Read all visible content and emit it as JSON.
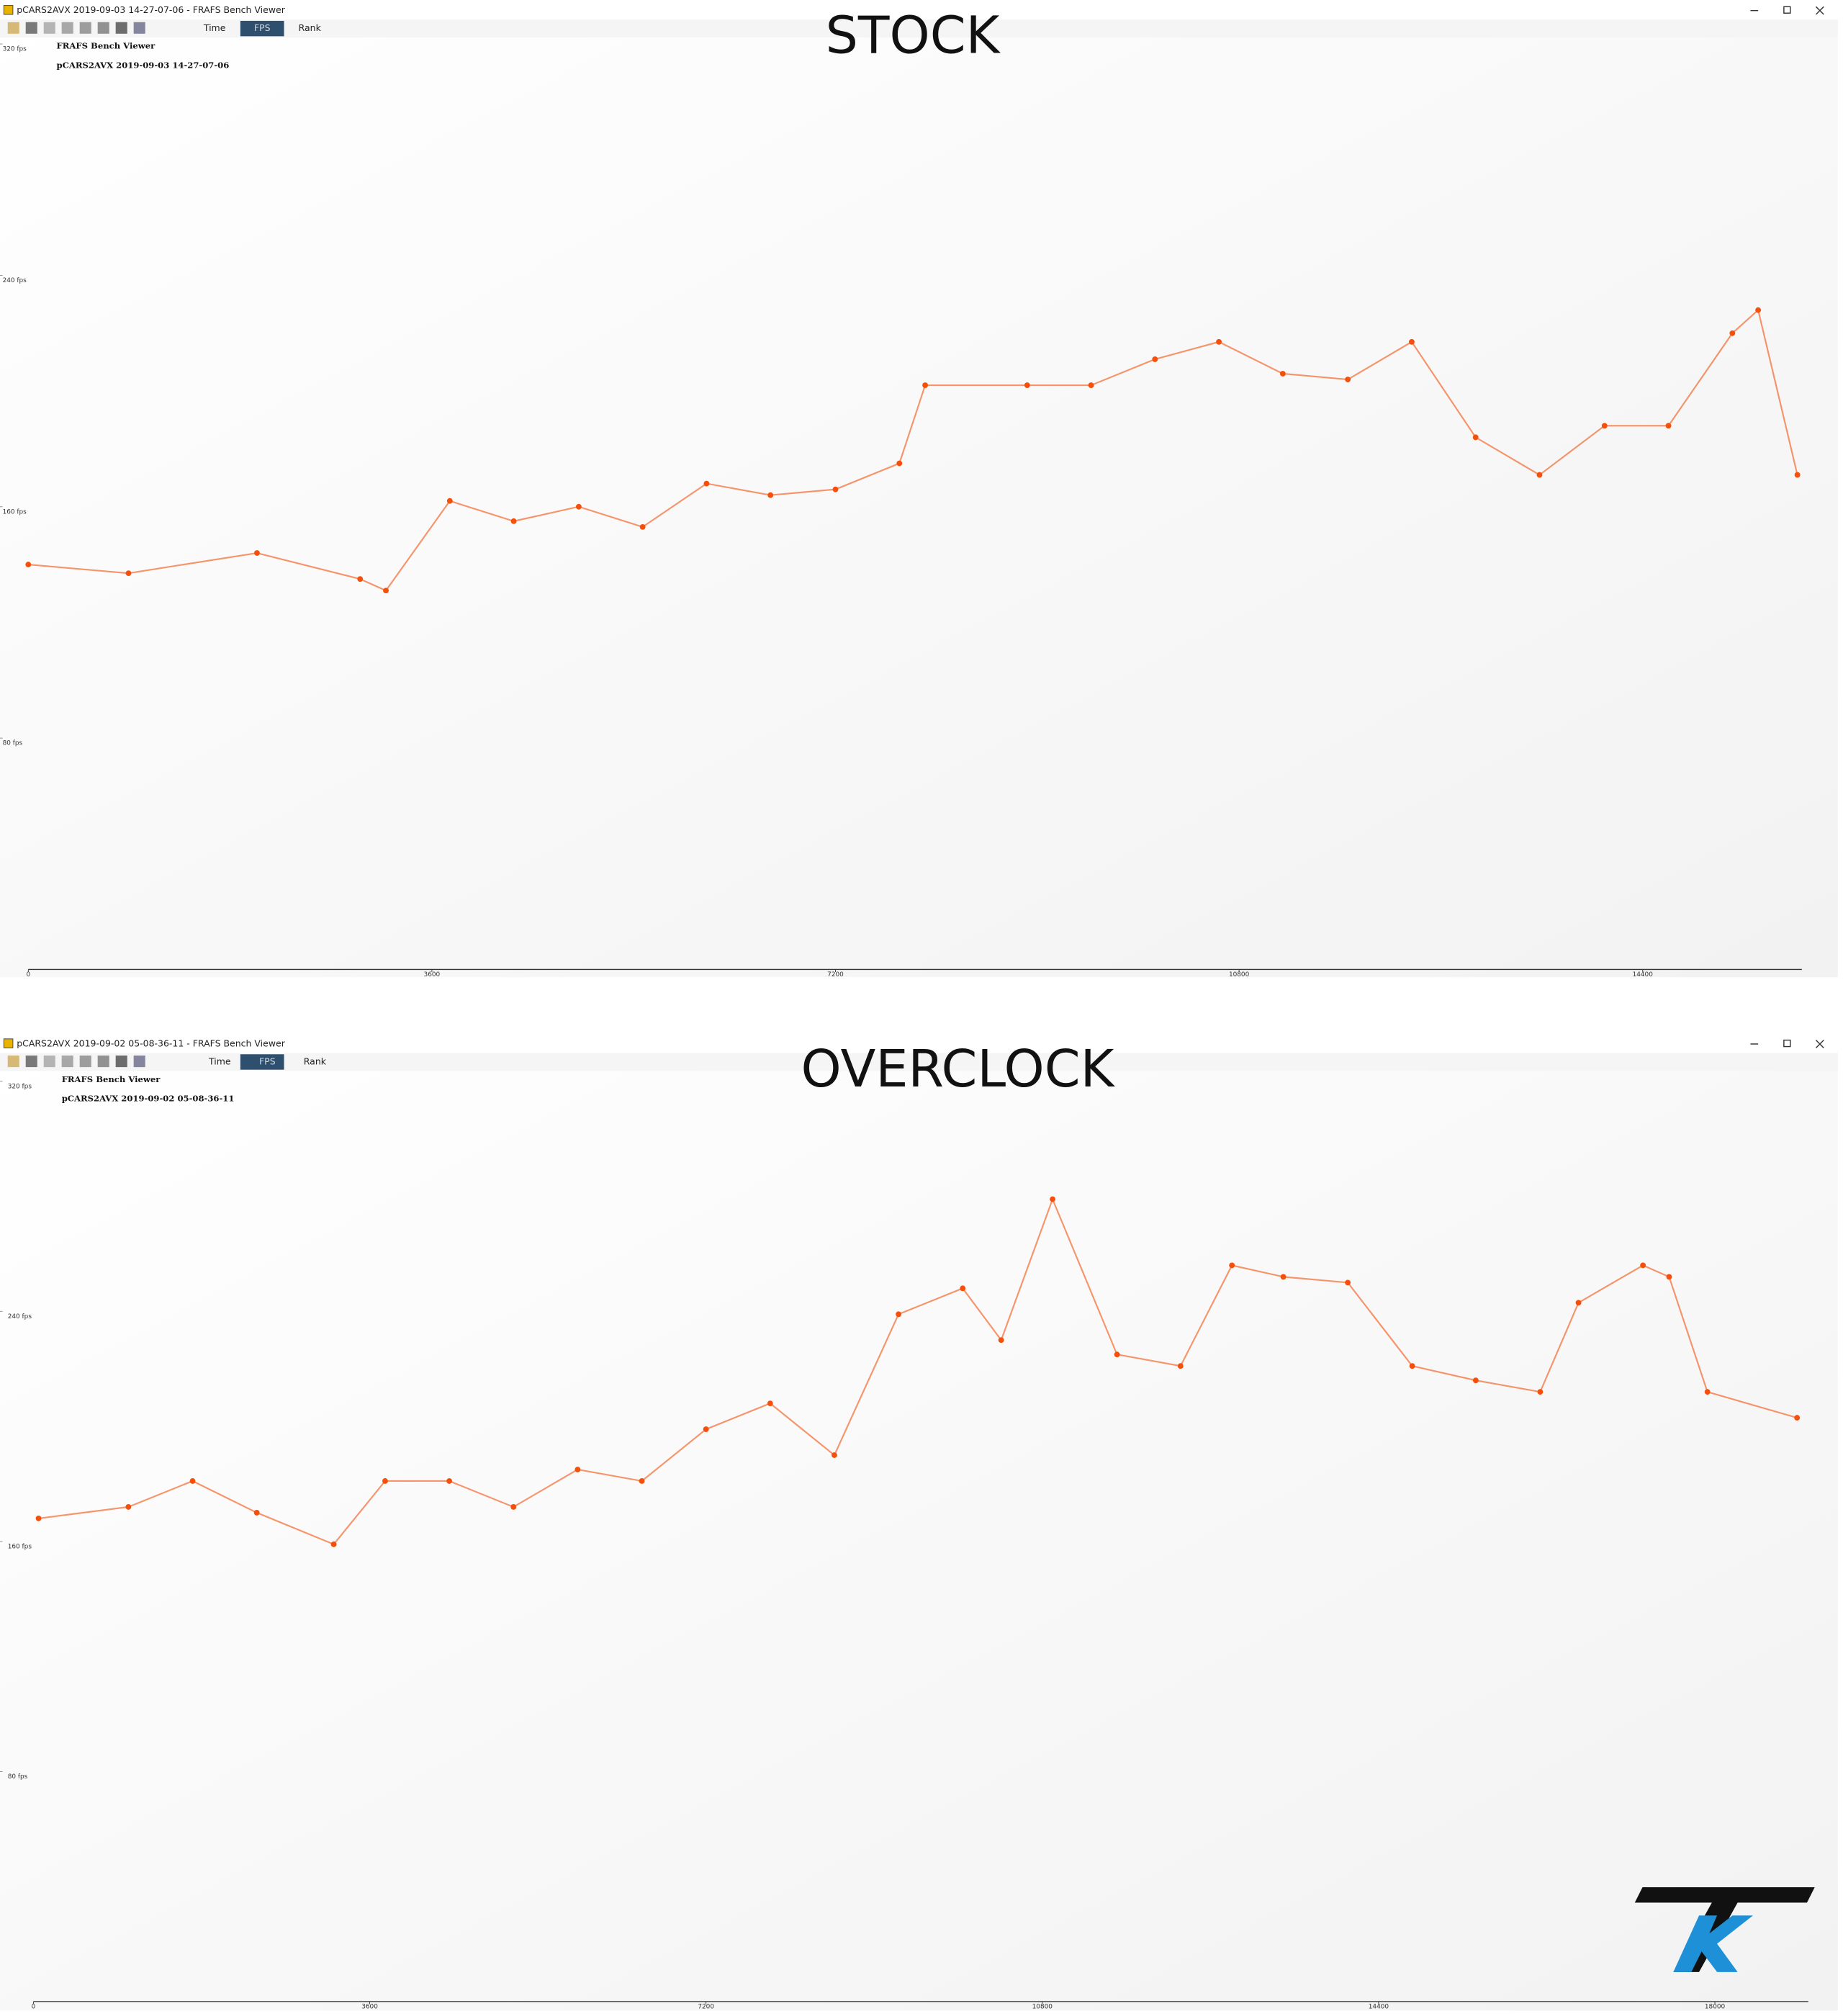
{
  "logo": "TKR",
  "chart_data": [
    {
      "type": "line",
      "window_title": "pCARS2AVX 2019-09-03 14-27-07-06 - FRAFS Bench Viewer",
      "tabs": [
        "Time",
        "FPS",
        "Rank"
      ],
      "title": "STOCK",
      "app_name": "FRAFS Bench Viewer",
      "subtitle": "pCARS2AVX 2019-09-03 14-27-07-06",
      "x": [
        0,
        894,
        2040,
        2960,
        3190,
        3760,
        4330,
        4910,
        5480,
        6050,
        6620,
        7200,
        7770,
        8000,
        8910,
        9480,
        10050,
        10620,
        11190,
        11770,
        12340,
        12910,
        13480,
        14060,
        14630,
        15200,
        15430,
        15780
      ],
      "values": [
        140,
        137,
        144,
        135,
        131,
        162,
        155,
        160,
        153,
        168,
        164,
        166,
        175,
        202,
        202,
        202,
        211,
        217,
        206,
        204,
        217,
        184,
        171,
        188,
        188,
        220,
        228,
        171
      ],
      "color": "#f4500c",
      "xlim": [
        0,
        15820
      ],
      "xticks": [
        0,
        3600,
        7200,
        10800,
        14400
      ],
      "ylim": [
        0,
        320
      ],
      "yticks": [
        {
          "value": 320,
          "label": "320 fps"
        },
        {
          "value": 240,
          "label": "240 fps"
        },
        {
          "value": 160,
          "label": "160 fps"
        },
        {
          "value": 80,
          "label": "80 fps"
        }
      ]
    },
    {
      "type": "line",
      "window_title": "pCARS2AVX 2019-09-02 05-08-36-11 - FRAFS Bench Viewer",
      "tabs": [
        "Time",
        "FPS",
        "Rank"
      ],
      "title": "OVERCLOCK",
      "app_name": "FRAFS Bench Viewer",
      "subtitle": "pCARS2AVX 2019-09-02 05-08-36-11",
      "x": [
        55,
        1017,
        1704,
        2391,
        3215,
        3765,
        4452,
        5139,
        5826,
        6513,
        7200,
        7887,
        8574,
        9261,
        9948,
        10360,
        10910,
        11600,
        12280,
        12830,
        13380,
        14070,
        14760,
        15440,
        16130,
        16540,
        17230,
        17510,
        17920,
        18880
      ],
      "values": [
        168,
        172,
        181,
        170,
        159,
        181,
        181,
        172,
        185,
        181,
        199,
        208,
        190,
        239,
        248,
        230,
        279,
        225,
        221,
        256,
        252,
        250,
        221,
        216,
        212,
        243,
        256,
        252,
        212,
        203
      ],
      "color": "#f4500c",
      "xlim": [
        0,
        19000
      ],
      "xticks": [
        0,
        3600,
        7200,
        10800,
        14400,
        18000
      ],
      "ylim": [
        0,
        320
      ],
      "yticks": [
        {
          "value": 320,
          "label": "320 fps"
        },
        {
          "value": 240,
          "label": "240 fps"
        },
        {
          "value": 160,
          "label": "160 fps"
        },
        {
          "value": 80,
          "label": "80 fps"
        }
      ]
    }
  ]
}
